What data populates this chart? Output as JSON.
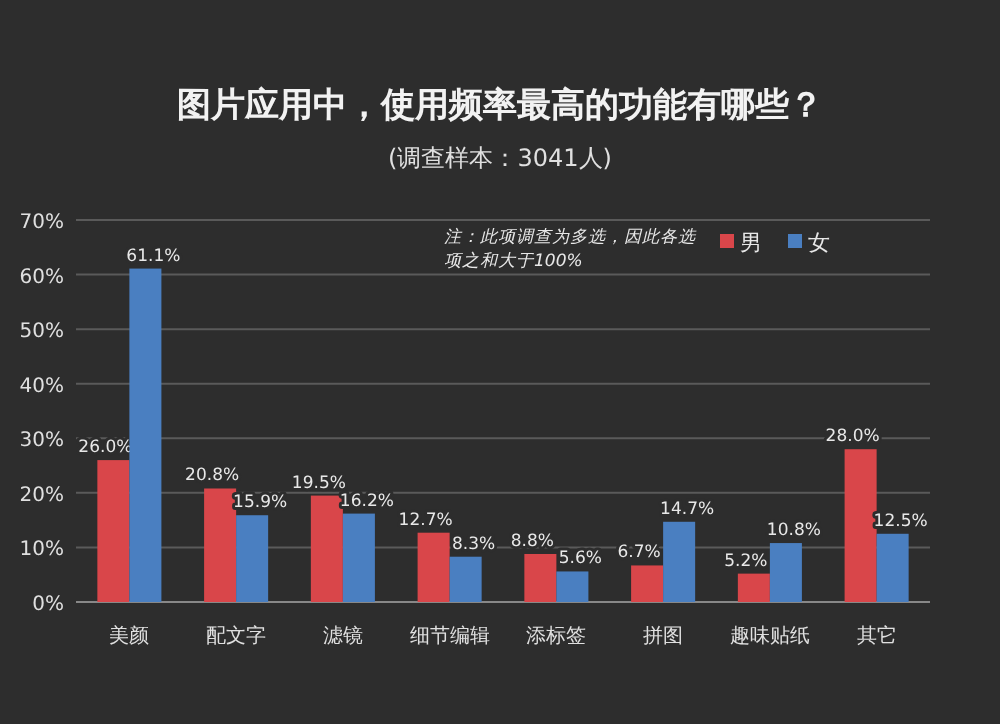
{
  "chart_data": {
    "type": "bar",
    "title": "图片应用中，使用频率最高的功能有哪些？",
    "subtitle": "(调查样本：3041人)",
    "annotations": [
      "注：此项调查为多选，因此各选项之和大于100%"
    ],
    "categories": [
      "美颜",
      "配文字",
      "滤镜",
      "细节编辑",
      "添标签",
      "拼图",
      "趣味贴纸",
      "其它"
    ],
    "series": [
      {
        "name": "男",
        "color": "#d9464a",
        "values": [
          26.0,
          20.8,
          19.5,
          12.7,
          8.8,
          6.7,
          5.2,
          28.0
        ],
        "value_labels": [
          "26.0%",
          "20.8%",
          "19.5%",
          "12.7%",
          "8.8%",
          "6.7%",
          "5.2%",
          "28.0%"
        ]
      },
      {
        "name": "女",
        "color": "#4a7fc1",
        "values": [
          61.1,
          15.9,
          16.2,
          8.3,
          5.6,
          14.7,
          10.8,
          12.5
        ],
        "value_labels": [
          "61.1%",
          "15.9%",
          "16.2%",
          "8.3%",
          "5.6%",
          "14.7%",
          "10.8%",
          "12.5%"
        ]
      }
    ],
    "ylim": [
      0,
      70
    ],
    "yticks": [
      {
        "value": 0,
        "label": "0%"
      },
      {
        "value": 10,
        "label": "10%"
      },
      {
        "value": 20,
        "label": "20%"
      },
      {
        "value": 30,
        "label": "30%"
      },
      {
        "value": 40,
        "label": "40%"
      },
      {
        "value": 50,
        "label": "50%"
      },
      {
        "value": 60,
        "label": "60%"
      },
      {
        "value": 70,
        "label": "70%"
      }
    ],
    "grid": "y",
    "legend": "top right"
  }
}
